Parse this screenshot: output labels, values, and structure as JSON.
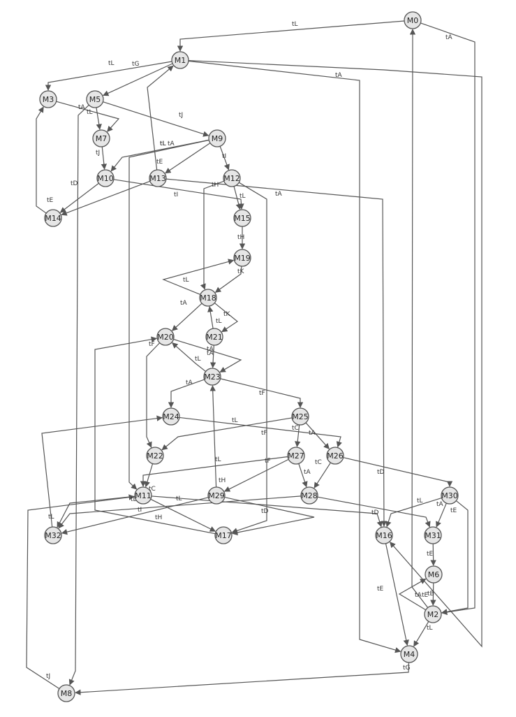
{
  "diagram": {
    "type": "state-transition-graph",
    "colors": {
      "node_fill": "#e6e6e6",
      "node_stroke": "#555555",
      "edge": "#555555",
      "text": "#222222"
    },
    "nodes": [
      "M0",
      "M1",
      "M2",
      "M3",
      "M4",
      "M5",
      "M6",
      "M7",
      "M8",
      "M9",
      "M10",
      "M11",
      "M12",
      "M13",
      "M14",
      "M15",
      "M16",
      "M17",
      "M18",
      "M19",
      "M20",
      "M21",
      "M22",
      "M23",
      "M24",
      "M25",
      "M26",
      "M27",
      "M28",
      "M29",
      "M30",
      "M31",
      "M32"
    ],
    "edges": [
      {
        "from": "M0",
        "to": "M1",
        "label": "tL"
      },
      {
        "from": "M0",
        "to": "M2",
        "label": "tA"
      },
      {
        "from": "M1",
        "to": "M3",
        "label": "tL"
      },
      {
        "from": "M1",
        "to": "M5",
        "label": "tG"
      },
      {
        "from": "M1",
        "to": "M4",
        "label": "tA"
      },
      {
        "from": "M1",
        "to": "M16",
        "label": ""
      },
      {
        "from": "M3",
        "to": "M7",
        "label": "tA"
      },
      {
        "from": "M5",
        "to": "M7",
        "label": "tL"
      },
      {
        "from": "M5",
        "to": "M9",
        "label": "tJ"
      },
      {
        "from": "M5",
        "to": "M8",
        "label": ""
      },
      {
        "from": "M7",
        "to": "M10",
        "label": "tJ"
      },
      {
        "from": "M9",
        "to": "M10",
        "label": "tL"
      },
      {
        "from": "M9",
        "to": "M13",
        "label": "tE"
      },
      {
        "from": "M9",
        "to": "M12",
        "label": "tI"
      },
      {
        "from": "M9",
        "to": "M11",
        "label": "tA"
      },
      {
        "from": "M10",
        "to": "M14",
        "label": "tD"
      },
      {
        "from": "M10",
        "to": "M15",
        "label": "tI"
      },
      {
        "from": "M13",
        "to": "M1",
        "label": "tL"
      },
      {
        "from": "M13",
        "to": "M14",
        "label": "tE"
      },
      {
        "from": "M13",
        "to": "M16",
        "label": ""
      },
      {
        "from": "M14",
        "to": "M3",
        "label": ""
      },
      {
        "from": "M12",
        "to": "M15",
        "label": "tL"
      },
      {
        "from": "M12",
        "to": "M18",
        "label": "tH"
      },
      {
        "from": "M12",
        "to": "M17",
        "label": "tA"
      },
      {
        "from": "M15",
        "to": "M19",
        "label": "tH"
      },
      {
        "from": "M19",
        "to": "M18",
        "label": "tK"
      },
      {
        "from": "M18",
        "to": "M19",
        "label": "tL"
      },
      {
        "from": "M18",
        "to": "M20",
        "label": "tA"
      },
      {
        "from": "M18",
        "to": "M21",
        "label": "tK"
      },
      {
        "from": "M21",
        "to": "M18",
        "label": "tL"
      },
      {
        "from": "M21",
        "to": "M23",
        "label": "tA"
      },
      {
        "from": "M20",
        "to": "M23",
        "label": "tA"
      },
      {
        "from": "M23",
        "to": "M20",
        "label": "tL"
      },
      {
        "from": "M20",
        "to": "M22",
        "label": "tF"
      },
      {
        "from": "M23",
        "to": "M24",
        "label": "tA"
      },
      {
        "from": "M23",
        "to": "M25",
        "label": "tF"
      },
      {
        "from": "M24",
        "to": "M26",
        "label": "tL"
      },
      {
        "from": "M25",
        "to": "M22",
        "label": "tF"
      },
      {
        "from": "M25",
        "to": "M27",
        "label": "tC"
      },
      {
        "from": "M25",
        "to": "M26",
        "label": "tA"
      },
      {
        "from": "M26",
        "to": "M28",
        "label": "tC"
      },
      {
        "from": "M26",
        "to": "M30",
        "label": "tD"
      },
      {
        "from": "M27",
        "to": "M11",
        "label": "tF"
      },
      {
        "from": "M27",
        "to": "M29",
        "label": "tH"
      },
      {
        "from": "M27",
        "to": "M28",
        "label": "tA"
      },
      {
        "from": "M22",
        "to": "M11",
        "label": "tC"
      },
      {
        "from": "M29",
        "to": "M23",
        "label": "tL"
      },
      {
        "from": "M29",
        "to": "M32",
        "label": "tI"
      },
      {
        "from": "M29",
        "to": "M17",
        "label": "tD"
      },
      {
        "from": "M11",
        "to": "M16",
        "label": "tL"
      },
      {
        "from": "M11",
        "to": "M17",
        "label": "tH"
      },
      {
        "from": "M11",
        "to": "M32",
        "label": "tD"
      },
      {
        "from": "M28",
        "to": "M32",
        "label": ""
      },
      {
        "from": "M28",
        "to": "M31",
        "label": "tD"
      },
      {
        "from": "M30",
        "to": "M16",
        "label": "tL"
      },
      {
        "from": "M30",
        "to": "M31",
        "label": "tA"
      },
      {
        "from": "M30",
        "to": "M2",
        "label": "tE"
      },
      {
        "from": "M31",
        "to": "M6",
        "label": "tE"
      },
      {
        "from": "M6",
        "to": "M2",
        "label": "tB"
      },
      {
        "from": "M2",
        "to": "M6",
        "label": "tA"
      },
      {
        "from": "M2",
        "to": "M0",
        "label": "tE"
      },
      {
        "from": "M2",
        "to": "M4",
        "label": "tL"
      },
      {
        "from": "M16",
        "to": "M4",
        "label": "tE"
      },
      {
        "from": "M4",
        "to": "M8",
        "label": "tG"
      },
      {
        "from": "M32",
        "to": "M24",
        "label": "tL"
      },
      {
        "from": "M8",
        "to": "M11",
        "label": "tJ"
      },
      {
        "from": "M17",
        "to": "M20",
        "label": ""
      }
    ]
  }
}
